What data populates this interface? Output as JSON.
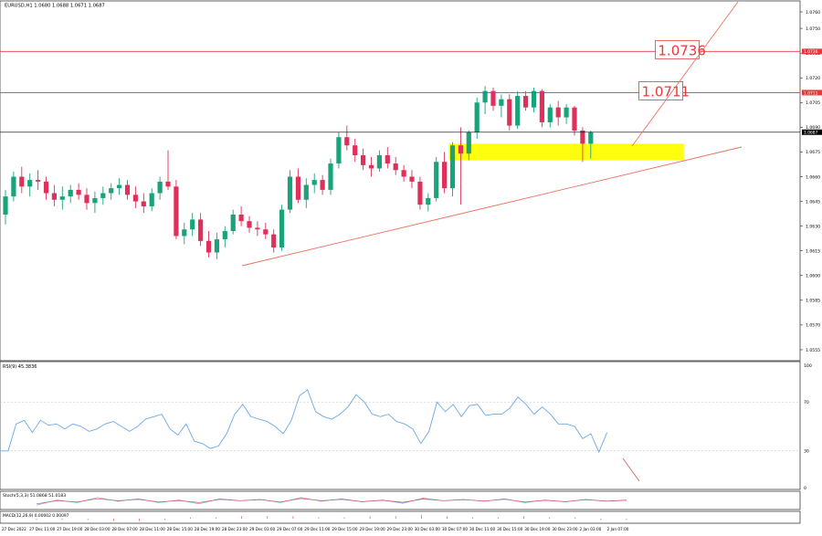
{
  "chart_data": [
    {
      "panel": "price",
      "type": "candlestick",
      "title": "EURUSD,H1  1.0680 1.0688 1.0671 1.0687",
      "current_price_label": "1.0687",
      "ylim": [
        1.055,
        1.0765
      ],
      "y_ticks": [
        "1.0760",
        "1.0750",
        "1.0735",
        "1.0720",
        "1.0705",
        "1.0690",
        "1.0675",
        "1.0660",
        "1.0645",
        "1.0630",
        "1.0615",
        "1.0600",
        "1.0585",
        "1.0570",
        "1.0555"
      ],
      "levels": [
        {
          "value": 1.0736,
          "label": "1.0736",
          "color": "#e8383b"
        },
        {
          "value": 1.0711,
          "label": "1.0711",
          "color": "#e8383b"
        }
      ],
      "current_price": 1.0687,
      "support_zone": {
        "from": 1.067,
        "to": 1.068,
        "color": "#ffff00"
      },
      "trendline": {
        "from": [
          10,
          1.0614
        ],
        "to": [
          119,
          1.0678
        ],
        "color": "#f07060"
      },
      "projection": {
        "from": [
          110,
          1.0677
        ],
        "to": [
          138,
          1.077
        ],
        "color": "#f07060"
      },
      "candles": [
        [
          1.0637,
          1.0652,
          1.0631,
          1.0648
        ],
        [
          1.0648,
          1.0663,
          1.0645,
          1.066
        ],
        [
          1.066,
          1.0666,
          1.065,
          1.0654
        ],
        [
          1.0654,
          1.0662,
          1.0648,
          1.0658
        ],
        [
          1.0658,
          1.0664,
          1.0652,
          1.0657
        ],
        [
          1.0657,
          1.066,
          1.0646,
          1.065
        ],
        [
          1.065,
          1.0655,
          1.0642,
          1.0646
        ],
        [
          1.0646,
          1.0654,
          1.064,
          1.0648
        ],
        [
          1.0648,
          1.0655,
          1.0644,
          1.0652
        ],
        [
          1.0652,
          1.0656,
          1.0646,
          1.0649
        ],
        [
          1.0649,
          1.0653,
          1.064,
          1.0644
        ],
        [
          1.0644,
          1.0651,
          1.0638,
          1.0647
        ],
        [
          1.0647,
          1.0654,
          1.0643,
          1.065
        ],
        [
          1.065,
          1.0656,
          1.0646,
          1.0653
        ],
        [
          1.0653,
          1.0659,
          1.0649,
          1.0655
        ],
        [
          1.0655,
          1.0658,
          1.0646,
          1.0649
        ],
        [
          1.0649,
          1.0654,
          1.0641,
          1.0645
        ],
        [
          1.0645,
          1.065,
          1.0638,
          1.0642
        ],
        [
          1.0642,
          1.0653,
          1.0639,
          1.065
        ],
        [
          1.065,
          1.066,
          1.0646,
          1.0657
        ],
        [
          1.0657,
          1.0676,
          1.0652,
          1.0654
        ],
        [
          1.0654,
          1.0658,
          1.0622,
          1.0624
        ],
        [
          1.0624,
          1.0632,
          1.0619,
          1.0628
        ],
        [
          1.0628,
          1.0638,
          1.0624,
          1.0634
        ],
        [
          1.0634,
          1.0638,
          1.0618,
          1.0621
        ],
        [
          1.0621,
          1.0627,
          1.0611,
          1.0614
        ],
        [
          1.0614,
          1.0626,
          1.061,
          1.0622
        ],
        [
          1.0622,
          1.063,
          1.0617,
          1.0627
        ],
        [
          1.0627,
          1.064,
          1.0625,
          1.0637
        ],
        [
          1.0637,
          1.0642,
          1.063,
          1.0633
        ],
        [
          1.0633,
          1.0636,
          1.0626,
          1.0629
        ],
        [
          1.0629,
          1.0633,
          1.0624,
          1.0628
        ],
        [
          1.0628,
          1.0632,
          1.0622,
          1.0625
        ],
        [
          1.0625,
          1.0628,
          1.0614,
          1.0617
        ],
        [
          1.0617,
          1.0643,
          1.0615,
          1.064
        ],
        [
          1.064,
          1.0664,
          1.0638,
          1.066
        ],
        [
          1.066,
          1.0665,
          1.0644,
          1.0646
        ],
        [
          1.0646,
          1.0659,
          1.0641,
          1.0655
        ],
        [
          1.0655,
          1.0662,
          1.065,
          1.0658
        ],
        [
          1.0658,
          1.0661,
          1.0649,
          1.0652
        ],
        [
          1.0652,
          1.0671,
          1.0649,
          1.0668
        ],
        [
          1.0668,
          1.0687,
          1.0665,
          1.0684
        ],
        [
          1.0684,
          1.0691,
          1.0676,
          1.0679
        ],
        [
          1.0679,
          1.0683,
          1.0669,
          1.0673
        ],
        [
          1.0673,
          1.0677,
          1.0664,
          1.0667
        ],
        [
          1.0667,
          1.0672,
          1.066,
          1.0665
        ],
        [
          1.0665,
          1.0676,
          1.0663,
          1.0673
        ],
        [
          1.0673,
          1.0678,
          1.0665,
          1.0668
        ],
        [
          1.0668,
          1.0672,
          1.0661,
          1.0664
        ],
        [
          1.0664,
          1.0667,
          1.0657,
          1.066
        ],
        [
          1.066,
          1.0664,
          1.0653,
          1.0657
        ],
        [
          1.0657,
          1.066,
          1.064,
          1.0643
        ],
        [
          1.0643,
          1.065,
          1.0639,
          1.0647
        ],
        [
          1.0647,
          1.0672,
          1.0645,
          1.0669
        ],
        [
          1.0669,
          1.0675,
          1.065,
          1.0653
        ],
        [
          1.0653,
          1.0681,
          1.0648,
          1.0679
        ],
        [
          1.0679,
          1.069,
          1.0643,
          1.0674
        ],
        [
          1.0674,
          1.0688,
          1.067,
          1.0687
        ],
        [
          1.0687,
          1.0708,
          1.0683,
          1.0705
        ],
        [
          1.0705,
          1.0715,
          1.0698,
          1.0712
        ],
        [
          1.0712,
          1.0714,
          1.07,
          1.0703
        ],
        [
          1.0703,
          1.071,
          1.0696,
          1.0707
        ],
        [
          1.0707,
          1.071,
          1.0688,
          1.0691
        ],
        [
          1.0691,
          1.0712,
          1.0689,
          1.0709
        ],
        [
          1.0709,
          1.0712,
          1.07,
          1.0702
        ],
        [
          1.0702,
          1.0714,
          1.0699,
          1.0712
        ],
        [
          1.0712,
          1.0713,
          1.069,
          1.0693
        ],
        [
          1.0693,
          1.0704,
          1.069,
          1.0702
        ],
        [
          1.0702,
          1.0706,
          1.0691,
          1.0696
        ],
        [
          1.0696,
          1.0704,
          1.0692,
          1.0702
        ],
        [
          1.0702,
          1.0703,
          1.0685,
          1.0688
        ],
        [
          1.0688,
          1.069,
          1.0669,
          1.068
        ],
        [
          1.068,
          1.0688,
          1.0671,
          1.0687
        ]
      ],
      "x_tick_labels": [
        "27 Dec 2022",
        "27 Dec 11:00",
        "27 Dec 19:00",
        "28 Dec 03:00",
        "28 Dec 07:00",
        "28 Dec 11:00",
        "28 Dec 15:00",
        "28 Dec 19:00",
        "28 Dec 23:00",
        "29 Dec 03:00",
        "29 Dec 07:00",
        "29 Dec 11:00",
        "29 Dec 15:00",
        "29 Dec 19:00",
        "29 Dec 23:00",
        "30 Dec 03:00",
        "30 Dec 07:00",
        "30 Dec 11:00",
        "30 Dec 15:00",
        "30 Dec 19:00",
        "30 Dec 23:00",
        "2 Jan 03:00",
        "2 Jan 07:00"
      ]
    },
    {
      "panel": "rsi",
      "type": "line",
      "title": "RSI(9) 45.3836",
      "ylim": [
        0,
        100
      ],
      "y_ticks": [
        "100",
        "70",
        "30",
        "0"
      ],
      "levels": [
        70,
        30
      ],
      "series": [
        {
          "color": "#6aa8e8",
          "values": [
            30,
            30,
            52,
            55,
            45,
            55,
            51,
            52,
            48,
            52,
            50,
            46,
            48,
            52,
            54,
            50,
            46,
            50,
            56,
            58,
            60,
            48,
            43,
            52,
            38,
            36,
            32,
            34,
            44,
            60,
            68,
            58,
            56,
            54,
            50,
            44,
            55,
            75,
            80,
            62,
            58,
            56,
            60,
            66,
            76,
            70,
            60,
            58,
            60,
            54,
            52,
            48,
            36,
            46,
            70,
            62,
            68,
            58,
            67,
            68,
            59,
            60,
            60,
            65,
            74,
            68,
            60,
            66,
            60,
            52,
            52,
            50,
            40,
            44,
            29,
            45
          ]
        },
        {
          "color": "#e05050",
          "values": [
            null
          ]
        }
      ],
      "projection": {
        "color": "#e05050"
      }
    },
    {
      "panel": "stoch",
      "type": "line",
      "title": "Stoch(5,3,3) 51.0868 51.0183",
      "series": [
        {
          "color": "#6aa8e8",
          "values": [
            20,
            60,
            40,
            80,
            50,
            70,
            40,
            60,
            30,
            70,
            55,
            65,
            40,
            80,
            50,
            70,
            45,
            60,
            35,
            75,
            55,
            65,
            50,
            70,
            40,
            60,
            45,
            65,
            50,
            60
          ]
        },
        {
          "color": "#e05050",
          "values": [
            30,
            55,
            45,
            70,
            55,
            65,
            45,
            55,
            40,
            65,
            55,
            62,
            45,
            72,
            55,
            65,
            48,
            58,
            42,
            68,
            55,
            62,
            52,
            66,
            45,
            58,
            48,
            62,
            52,
            58
          ]
        }
      ]
    },
    {
      "panel": "macd",
      "type": "bar",
      "title": "MACD(12,26,9) 0.00002 0.00097",
      "series": [
        {
          "color": "#e05050",
          "values": [
            -1,
            -1,
            -1,
            -2,
            -2,
            -1,
            1,
            1,
            2,
            2,
            2,
            1,
            1,
            2,
            2,
            3,
            2,
            1,
            1,
            2,
            1,
            1,
            -1,
            -1
          ]
        }
      ]
    }
  ]
}
